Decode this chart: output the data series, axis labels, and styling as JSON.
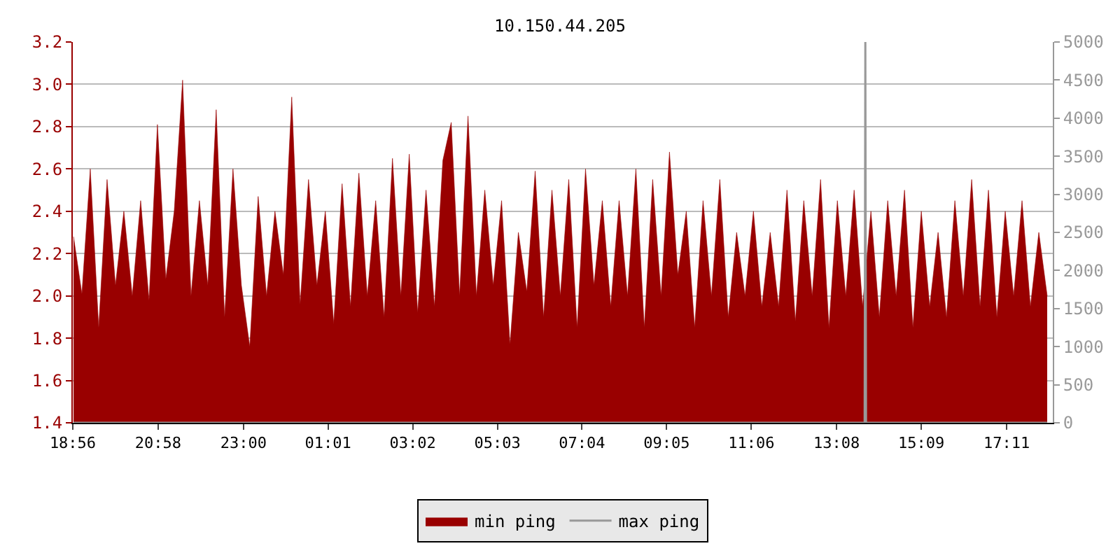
{
  "chart_data": {
    "type": "area",
    "title": "10.150.44.205",
    "xlim": [
      "--01-01T18:56",
      "--01-02T18:17"
    ],
    "xticks": [
      {
        "value": "--01-01T18:56",
        "label": "18:56"
      },
      {
        "value": "--01-01T20:58",
        "label": "20:58"
      },
      {
        "value": "--01-01T23:00",
        "label": "23:00"
      },
      {
        "value": "--01-02T01:01",
        "label": "01:01"
      },
      {
        "value": "--01-02T03:02",
        "label": "03:02"
      },
      {
        "value": "--01-02T05:03",
        "label": "05:03"
      },
      {
        "value": "--01-02T07:04",
        "label": "07:04"
      },
      {
        "value": "--01-02T09:05",
        "label": "09:05"
      },
      {
        "value": "--01-02T11:06",
        "label": "11:06"
      },
      {
        "value": "--01-02T13:08",
        "label": "13:08"
      },
      {
        "value": "--01-02T15:09",
        "label": "15:09"
      },
      {
        "value": "--01-02T17:11",
        "label": "17:11"
      }
    ],
    "ylim": [
      1.4,
      3.2
    ],
    "yticks": [
      {
        "value": 1.4,
        "label": "1.4"
      },
      {
        "value": 1.6,
        "label": "1.6"
      },
      {
        "value": 1.8,
        "label": "1.8"
      },
      {
        "value": 2.0,
        "label": "2.0"
      },
      {
        "value": 2.2,
        "label": "2.2"
      },
      {
        "value": 2.4,
        "label": "2.4"
      },
      {
        "value": 2.6,
        "label": "2.6"
      },
      {
        "value": 2.8,
        "label": "2.8"
      },
      {
        "value": 3.0,
        "label": "3.0"
      },
      {
        "value": 3.2,
        "label": "3.2"
      }
    ],
    "y2lim": [
      0,
      5000
    ],
    "y2ticks": [
      0,
      500,
      1000,
      1500,
      2000,
      2500,
      3000,
      3500,
      4000,
      4500,
      5000
    ],
    "grid": "y",
    "legend": "bottom",
    "series": [
      {
        "name": "min ping",
        "color": "#990000",
        "x": [
          "--01-01T18:57",
          "--01-01T19:09",
          "--01-01T19:21",
          "--01-01T19:33",
          "--01-01T19:45",
          "--01-01T19:57",
          "--01-01T20:09",
          "--01-01T20:21",
          "--01-01T20:33",
          "--01-01T20:45",
          "--01-01T20:57",
          "--01-01T21:09",
          "--01-01T21:21",
          "--01-01T21:33",
          "--01-01T21:45",
          "--01-01T21:57",
          "--01-01T22:09",
          "--01-01T22:21",
          "--01-01T22:33",
          "--01-01T22:45",
          "--01-01T22:57",
          "--01-01T23:09",
          "--01-01T23:21",
          "--01-01T23:33",
          "--01-01T23:45",
          "--01-01T23:57",
          "--01-02T00:09",
          "--01-02T00:21",
          "--01-02T00:33",
          "--01-02T00:45",
          "--01-02T00:57",
          "--01-02T01:09",
          "--01-02T01:21",
          "--01-02T01:33",
          "--01-02T01:45",
          "--01-02T01:57",
          "--01-02T02:09",
          "--01-02T02:21",
          "--01-02T02:33",
          "--01-02T02:45",
          "--01-02T02:57",
          "--01-02T03:09",
          "--01-02T03:21",
          "--01-02T03:33",
          "--01-02T03:45",
          "--01-02T03:57",
          "--01-02T04:09",
          "--01-02T04:21",
          "--01-02T04:33",
          "--01-02T04:45",
          "--01-02T04:57",
          "--01-02T05:09",
          "--01-02T05:21",
          "--01-02T05:33",
          "--01-02T05:45",
          "--01-02T05:57",
          "--01-02T06:09",
          "--01-02T06:21",
          "--01-02T06:33",
          "--01-02T06:45",
          "--01-02T06:57",
          "--01-02T07:09",
          "--01-02T07:21",
          "--01-02T07:33",
          "--01-02T07:45",
          "--01-02T07:57",
          "--01-02T08:09",
          "--01-02T08:21",
          "--01-02T08:33",
          "--01-02T08:45",
          "--01-02T08:57",
          "--01-02T09:09",
          "--01-02T09:21",
          "--01-02T09:33",
          "--01-02T09:45",
          "--01-02T09:57",
          "--01-02T10:09",
          "--01-02T10:21",
          "--01-02T10:33",
          "--01-02T10:45",
          "--01-02T10:57",
          "--01-02T11:09",
          "--01-02T11:21",
          "--01-02T11:33",
          "--01-02T11:45",
          "--01-02T11:57",
          "--01-02T12:09",
          "--01-02T12:21",
          "--01-02T12:33",
          "--01-02T12:45",
          "--01-02T12:57",
          "--01-02T13:09",
          "--01-02T13:21",
          "--01-02T13:33",
          "--01-02T13:45",
          "--01-02T13:57",
          "--01-02T14:09",
          "--01-02T14:21",
          "--01-02T14:33",
          "--01-02T14:45",
          "--01-02T14:57",
          "--01-02T15:09",
          "--01-02T15:21",
          "--01-02T15:33",
          "--01-02T15:45",
          "--01-02T15:57",
          "--01-02T16:09",
          "--01-02T16:21",
          "--01-02T16:33",
          "--01-02T16:45",
          "--01-02T16:57",
          "--01-02T17:09",
          "--01-02T17:21",
          "--01-02T17:33",
          "--01-02T17:45",
          "--01-02T17:57",
          "--01-02T18:09"
        ],
        "values": [
          2.28,
          2.01,
          2.6,
          1.85,
          2.55,
          2.05,
          2.4,
          2.0,
          2.45,
          1.98,
          2.81,
          2.08,
          2.4,
          3.02,
          2.0,
          2.45,
          2.05,
          2.88,
          1.9,
          2.6,
          2.05,
          1.76,
          2.47,
          2.0,
          2.4,
          2.1,
          2.94,
          1.96,
          2.55,
          2.05,
          2.4,
          1.87,
          2.53,
          1.95,
          2.58,
          2.0,
          2.45,
          1.9,
          2.65,
          2.0,
          2.67,
          1.92,
          2.5,
          1.95,
          2.64,
          2.82,
          2.0,
          2.85,
          2.0,
          2.5,
          2.05,
          2.45,
          1.77,
          2.3,
          2.02,
          2.59,
          1.9,
          2.5,
          2.0,
          2.55,
          1.85,
          2.6,
          2.05,
          2.45,
          1.95,
          2.45,
          2.0,
          2.6,
          1.85,
          2.55,
          2.0,
          2.68,
          2.1,
          2.4,
          1.85,
          2.45,
          2.0,
          2.55,
          1.9,
          2.3,
          2.0,
          2.4,
          1.95,
          2.3,
          1.95,
          2.5,
          1.88,
          2.45,
          2.0,
          2.55,
          1.85,
          2.45,
          2.0,
          2.5,
          1.95,
          2.4,
          1.9,
          2.45,
          2.0,
          2.5,
          1.85,
          2.4,
          1.95,
          2.3,
          1.9,
          2.45,
          2.0,
          2.55,
          1.95,
          2.5,
          1.9,
          2.4,
          2.0,
          2.45,
          1.95,
          2.3,
          2.0
        ]
      },
      {
        "name": "max ping",
        "color": "#999999",
        "type": "line",
        "axis": "y2",
        "x": [
          "--01-01T18:57",
          "--01-02T13:48",
          "--01-02T13:49",
          "--01-02T13:50",
          "--01-02T18:09"
        ],
        "values": [
          0,
          0,
          5000,
          0,
          0
        ]
      }
    ]
  }
}
